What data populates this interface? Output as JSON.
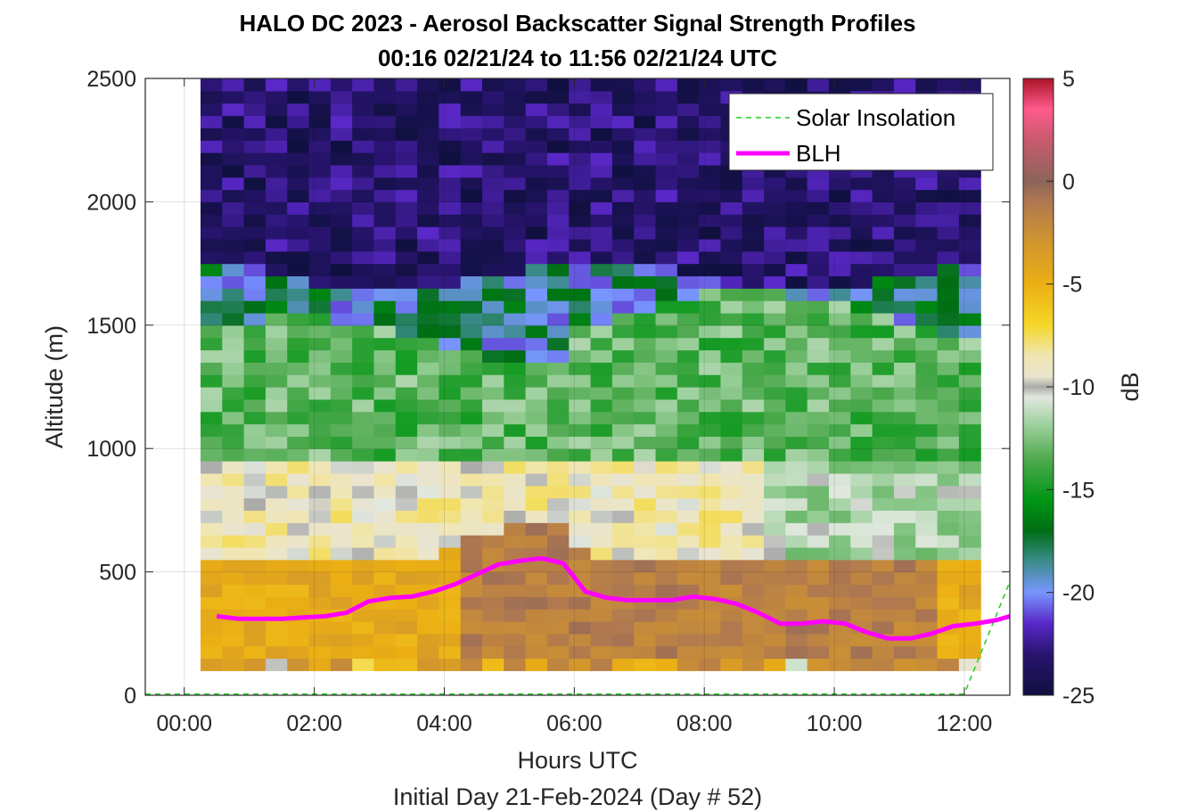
{
  "chart_data": {
    "type": "heatmap",
    "title": "HALO DC 2023 - Aerosol Backscatter Signal Strength Profiles",
    "subtitle": "00:16 02/21/24 to 11:56 02/21/24  UTC",
    "xlabel": "Hours UTC",
    "xlabel2": "Initial Day 21-Feb-2024 (Day # 52)",
    "ylabel": "Altitude (m)",
    "colorbar_label": "dB",
    "xlim": [
      -0.6,
      12.7
    ],
    "ylim": [
      0,
      2500
    ],
    "x_tick_labels": [
      "00:00",
      "02:00",
      "04:00",
      "06:00",
      "08:00",
      "10:00",
      "12:00"
    ],
    "x_tick_values": [
      0,
      2,
      4,
      6,
      8,
      10,
      12
    ],
    "y_tick_values": [
      0,
      500,
      1000,
      1500,
      2000,
      2500
    ],
    "y_tick_labels": [
      "0",
      "500",
      "1000",
      "1500",
      "2000",
      "2500"
    ],
    "colorbar_range": [
      -25,
      5
    ],
    "colorbar_ticks": [
      5,
      0,
      -5,
      -10,
      -15,
      -20,
      -25
    ],
    "colorbar_tick_labels": [
      "5",
      "0",
      "-5",
      "-10",
      "-15",
      "-20",
      "-25"
    ],
    "grid": true,
    "legend_position": "top-right",
    "heatmap": {
      "x_start": 0.25,
      "x_end": 11.95,
      "y_start": 100,
      "y_end": 2500,
      "description_layers_dB": [
        {
          "alt_from": 100,
          "alt_to": 150,
          "dB_range": [
            -9,
            -3
          ]
        },
        {
          "alt_from": 150,
          "alt_to": 550,
          "dB_range": [
            -5,
            -2
          ]
        },
        {
          "alt_from": 550,
          "alt_to": 900,
          "dB_range": [
            -11,
            -7
          ]
        },
        {
          "alt_from": 900,
          "alt_to": 1450,
          "dB_range": [
            -15,
            -11
          ]
        },
        {
          "alt_from": 1450,
          "alt_to": 1700,
          "dB_range": [
            -22,
            -16
          ]
        },
        {
          "alt_from": 1700,
          "alt_to": 2500,
          "dB_range": [
            -25,
            -21
          ]
        }
      ]
    },
    "series": [
      {
        "name": "Solar Insolation",
        "style": "dashed",
        "color": "#22cc22",
        "x": [
          -0.6,
          12.0,
          12.7
        ],
        "y": [
          5,
          5,
          460
        ]
      },
      {
        "name": "BLH",
        "style": "solid",
        "color": "#ff00ff",
        "x": [
          0.5,
          0.83,
          1.17,
          1.5,
          1.83,
          2.17,
          2.5,
          2.83,
          3.17,
          3.5,
          3.83,
          4.17,
          4.5,
          4.83,
          5.17,
          5.5,
          5.83,
          6.17,
          6.5,
          6.83,
          7.17,
          7.5,
          7.83,
          8.17,
          8.5,
          8.83,
          9.17,
          9.5,
          9.83,
          10.17,
          10.5,
          10.83,
          11.17,
          11.5,
          11.83,
          12.17,
          12.5,
          12.7
        ],
        "y": [
          320,
          310,
          310,
          310,
          315,
          320,
          335,
          380,
          395,
          400,
          420,
          450,
          490,
          530,
          545,
          555,
          535,
          420,
          395,
          385,
          385,
          385,
          400,
          390,
          370,
          335,
          290,
          290,
          300,
          290,
          255,
          230,
          230,
          250,
          280,
          290,
          305,
          320
        ]
      }
    ]
  }
}
